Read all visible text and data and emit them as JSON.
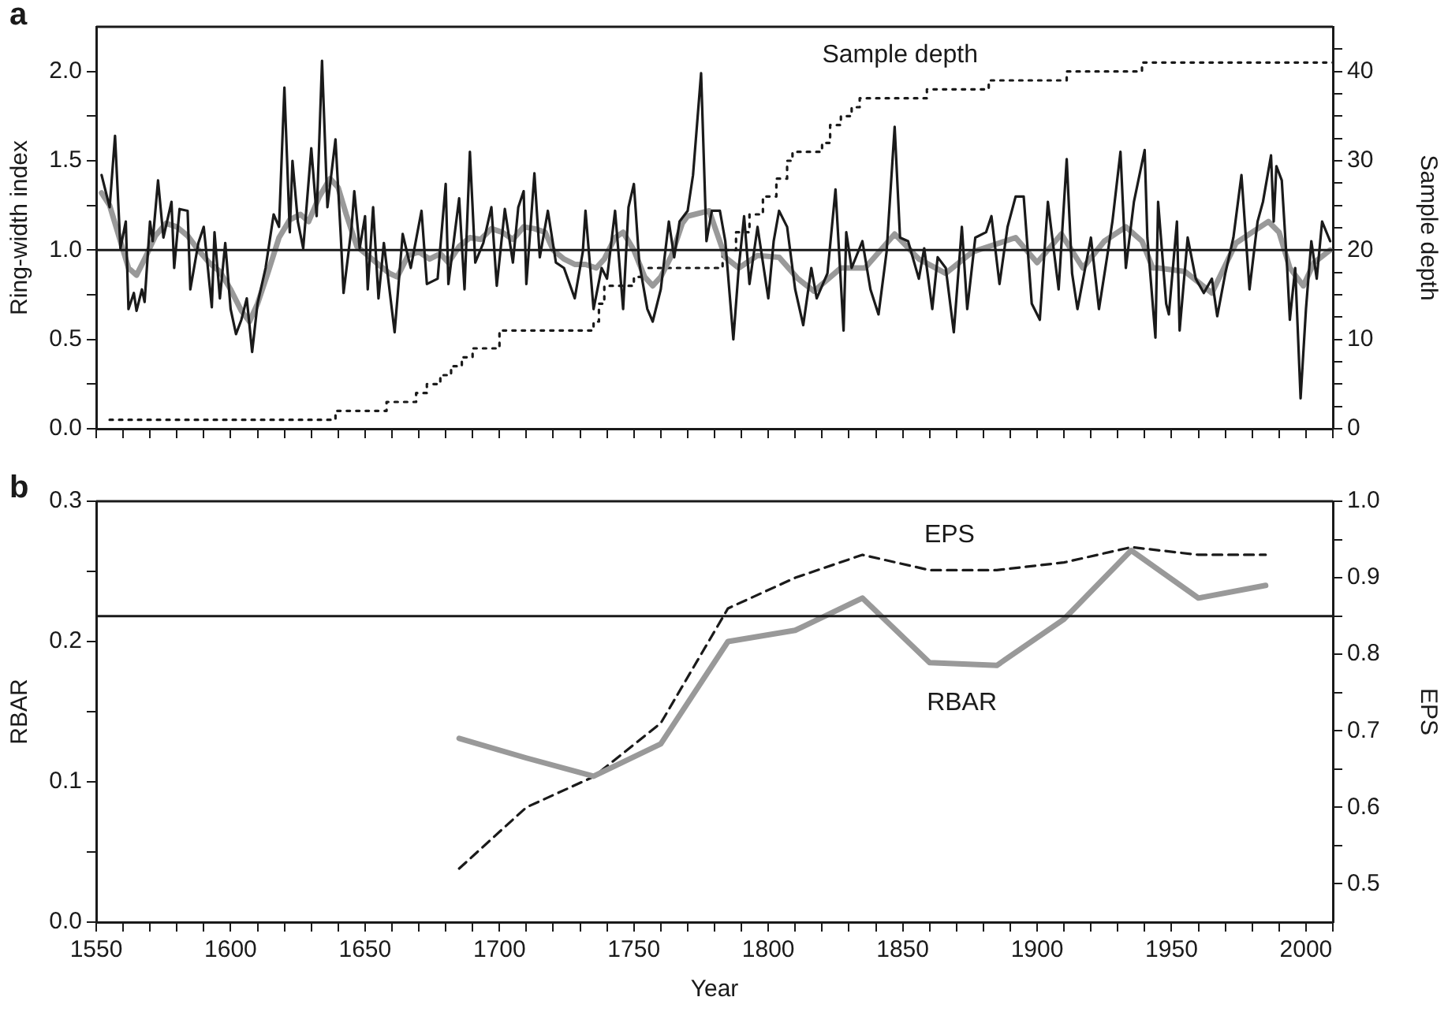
{
  "chart_data": [
    {
      "type": "line",
      "annotations": [
        "a"
      ],
      "ylabel": "Ring-width index",
      "y2label": "Sample depth",
      "xlim": [
        1550,
        2010
      ],
      "xticks": [
        {
          "value": 1550,
          "label": null
        },
        {
          "value": 1560,
          "label": null
        },
        {
          "value": 1570,
          "label": null
        },
        {
          "value": 1580,
          "label": null
        },
        {
          "value": 1590,
          "label": null
        },
        {
          "value": 1600,
          "label": null
        },
        {
          "value": 1610,
          "label": null
        },
        {
          "value": 1620,
          "label": null
        },
        {
          "value": 1630,
          "label": null
        },
        {
          "value": 1640,
          "label": null
        },
        {
          "value": 1650,
          "label": null
        },
        {
          "value": 1660,
          "label": null
        },
        {
          "value": 1670,
          "label": null
        },
        {
          "value": 1680,
          "label": null
        },
        {
          "value": 1690,
          "label": null
        },
        {
          "value": 1700,
          "label": null
        },
        {
          "value": 1710,
          "label": null
        },
        {
          "value": 1720,
          "label": null
        },
        {
          "value": 1730,
          "label": null
        },
        {
          "value": 1740,
          "label": null
        },
        {
          "value": 1750,
          "label": null
        },
        {
          "value": 1760,
          "label": null
        },
        {
          "value": 1770,
          "label": null
        },
        {
          "value": 1780,
          "label": null
        },
        {
          "value": 1790,
          "label": null
        },
        {
          "value": 1800,
          "label": null
        },
        {
          "value": 1810,
          "label": null
        },
        {
          "value": 1820,
          "label": null
        },
        {
          "value": 1830,
          "label": null
        },
        {
          "value": 1840,
          "label": null
        },
        {
          "value": 1850,
          "label": null
        },
        {
          "value": 1860,
          "label": null
        },
        {
          "value": 1870,
          "label": null
        },
        {
          "value": 1880,
          "label": null
        },
        {
          "value": 1890,
          "label": null
        },
        {
          "value": 1900,
          "label": null
        },
        {
          "value": 1910,
          "label": null
        },
        {
          "value": 1920,
          "label": null
        },
        {
          "value": 1930,
          "label": null
        },
        {
          "value": 1940,
          "label": null
        },
        {
          "value": 1950,
          "label": null
        },
        {
          "value": 1960,
          "label": null
        },
        {
          "value": 1970,
          "label": null
        },
        {
          "value": 1980,
          "label": null
        },
        {
          "value": 1990,
          "label": null
        },
        {
          "value": 2000,
          "label": null
        },
        {
          "value": 2010,
          "label": null
        }
      ],
      "ylim": [
        0,
        2.25
      ],
      "yticks": [
        {
          "value": 0,
          "label": "0.0"
        },
        {
          "value": 0.25,
          "label": null
        },
        {
          "value": 0.5,
          "label": "0.5"
        },
        {
          "value": 0.75,
          "label": null
        },
        {
          "value": 1,
          "label": "1.0"
        },
        {
          "value": 1.25,
          "label": null
        },
        {
          "value": 1.5,
          "label": "1.5"
        },
        {
          "value": 1.75,
          "label": null
        },
        {
          "value": 2,
          "label": "2.0"
        }
      ],
      "y2lim": [
        0,
        45
      ],
      "y2ticks": [
        0,
        {
          "value": 2.5,
          "label": null
        },
        {
          "value": 5,
          "label": null
        },
        {
          "value": 7.5,
          "label": null
        },
        10,
        {
          "value": 12.5,
          "label": null
        },
        {
          "value": 15,
          "label": null
        },
        {
          "value": 17.5,
          "label": null
        },
        20,
        {
          "value": 22.5,
          "label": null
        },
        {
          "value": 25,
          "label": null
        },
        {
          "value": 27.5,
          "label": null
        },
        30,
        {
          "value": 32.5,
          "label": null
        },
        {
          "value": 35,
          "label": null
        },
        {
          "value": 37.5,
          "label": null
        },
        40,
        {
          "value": 42.5,
          "label": null
        }
      ],
      "tick_labels": "y",
      "grid": false,
      "legend": false,
      "marker": "none",
      "ref_lines": [
        {
          "axis": "y",
          "value": 1.0,
          "color": "#1a1a1a"
        }
      ],
      "series": [
        {
          "color": "#1a1a1a",
          "x": [
            1552,
            1555,
            1557,
            1559,
            1561,
            1562,
            1564,
            1565,
            1567,
            1568,
            1570,
            1571,
            1573,
            1575,
            1578,
            1579,
            1581,
            1584,
            1585,
            1588,
            1590,
            1593,
            1594,
            1596,
            1598,
            1600,
            1602,
            1604,
            1606,
            1608,
            1610,
            1613,
            1616,
            1618,
            1620,
            1622,
            1623,
            1625,
            1627,
            1630,
            1632,
            1634,
            1636,
            1639,
            1641,
            1642,
            1645,
            1646,
            1648,
            1650,
            1651,
            1653,
            1655,
            1657,
            1661,
            1664,
            1667,
            1671,
            1673,
            1677,
            1680,
            1681,
            1685,
            1687,
            1689,
            1691,
            1694,
            1697,
            1699,
            1702,
            1705,
            1707,
            1709,
            1710,
            1713,
            1715,
            1718,
            1721,
            1724,
            1728,
            1731,
            1732,
            1735,
            1738,
            1740,
            1743,
            1746,
            1748,
            1750,
            1752,
            1755,
            1757,
            1760,
            1763,
            1765,
            1767,
            1770,
            1772,
            1775,
            1777,
            1779,
            1782,
            1784,
            1787,
            1789,
            1791,
            1793,
            1796,
            1800,
            1802,
            1804,
            1807,
            1810,
            1813,
            1816,
            1818,
            1822,
            1825,
            1828,
            1829,
            1831,
            1835,
            1838,
            1841,
            1844,
            1847,
            1849,
            1852,
            1856,
            1858,
            1861,
            1863,
            1866,
            1869,
            1872,
            1874,
            1877,
            1881,
            1883,
            1886,
            1889,
            1892,
            1895,
            1898,
            1901,
            1904,
            1908,
            1911,
            1913,
            1915,
            1920,
            1923,
            1926,
            1928,
            1931,
            1933,
            1936,
            1940,
            1941,
            1944,
            1945,
            1948,
            1949,
            1952,
            1953,
            1956,
            1959,
            1962,
            1965,
            1967,
            1970,
            1973,
            1976,
            1979,
            1982,
            1984,
            1987,
            1988,
            1989,
            1991,
            1993,
            1994,
            1996,
            1998,
            2000,
            2002,
            2004,
            2006,
            2009
          ],
          "values": [
            1.42,
            1.24,
            1.64,
            1.01,
            1.16,
            0.67,
            0.76,
            0.66,
            0.78,
            0.71,
            1.16,
            1.05,
            1.39,
            1.07,
            1.27,
            0.9,
            1.23,
            1.22,
            0.78,
            1.04,
            1.13,
            0.68,
            1.1,
            0.73,
            1.04,
            0.67,
            0.53,
            0.61,
            0.73,
            0.43,
            0.7,
            0.9,
            1.2,
            1.13,
            1.91,
            1.1,
            1.5,
            1.16,
            1.01,
            1.57,
            1.19,
            2.06,
            1.24,
            1.62,
            1.07,
            0.76,
            1.13,
            1.33,
            1.01,
            1.19,
            0.78,
            1.24,
            0.73,
            1.04,
            0.54,
            1.09,
            0.9,
            1.22,
            0.81,
            0.84,
            1.37,
            0.81,
            1.29,
            0.78,
            1.55,
            0.93,
            1.04,
            1.24,
            0.8,
            1.23,
            0.93,
            1.24,
            1.33,
            0.81,
            1.43,
            0.96,
            1.22,
            0.93,
            0.9,
            0.73,
            0.99,
            1.22,
            0.67,
            0.9,
            0.84,
            1.22,
            0.67,
            1.24,
            1.37,
            0.93,
            0.67,
            0.6,
            0.78,
            1.16,
            0.96,
            1.16,
            1.22,
            1.42,
            1.99,
            1.05,
            1.22,
            1.22,
            1.05,
            0.5,
            0.9,
            1.19,
            0.81,
            1.13,
            0.73,
            1.05,
            1.22,
            1.13,
            0.78,
            0.58,
            0.9,
            0.73,
            0.87,
            1.34,
            0.55,
            1.1,
            0.9,
            1.05,
            0.78,
            0.64,
            0.99,
            1.69,
            1.07,
            1.05,
            0.84,
            1.01,
            0.67,
            0.96,
            0.9,
            0.54,
            1.13,
            0.67,
            1.07,
            1.1,
            1.19,
            0.81,
            1.13,
            1.3,
            1.3,
            0.7,
            0.61,
            1.27,
            0.78,
            1.51,
            0.87,
            0.67,
            1.07,
            0.67,
            0.96,
            1.16,
            1.55,
            0.9,
            1.27,
            1.56,
            1.07,
            0.51,
            1.27,
            0.7,
            0.64,
            1.16,
            0.55,
            1.07,
            0.84,
            0.76,
            0.84,
            0.63,
            0.87,
            1.07,
            1.42,
            0.78,
            1.16,
            1.27,
            1.53,
            1.16,
            1.47,
            1.39,
            0.9,
            0.61,
            0.9,
            0.17,
            0.67,
            1.05,
            0.84,
            1.16,
            1.05
          ]
        },
        {
          "color": "#999999",
          "x": [
            1552,
            1555,
            1559,
            1562,
            1565,
            1568,
            1572,
            1576,
            1580,
            1584,
            1588,
            1592,
            1596,
            1600,
            1604,
            1607,
            1610,
            1614,
            1618,
            1622,
            1626,
            1629,
            1633,
            1637,
            1640,
            1643,
            1647,
            1651,
            1655,
            1659,
            1662,
            1666,
            1670,
            1674,
            1678,
            1681,
            1685,
            1689,
            1693,
            1697,
            1701,
            1705,
            1709,
            1713,
            1717,
            1720,
            1724,
            1728,
            1732,
            1736,
            1739,
            1743,
            1746,
            1750,
            1754,
            1757,
            1760,
            1764,
            1768,
            1770,
            1778,
            1784,
            1789,
            1796,
            1804,
            1811,
            1817,
            1827,
            1836,
            1847,
            1856,
            1866,
            1876,
            1884,
            1892,
            1900,
            1909,
            1917,
            1925,
            1933,
            1939,
            1943,
            1945,
            1955,
            1965,
            1974,
            1980,
            1986,
            1990,
            1994,
            1999,
            2003,
            2009
          ],
          "values": [
            1.32,
            1.25,
            1.05,
            0.9,
            0.86,
            0.95,
            1.08,
            1.15,
            1.13,
            1.08,
            1.0,
            0.93,
            0.88,
            0.78,
            0.66,
            0.6,
            0.7,
            0.88,
            1.07,
            1.17,
            1.2,
            1.16,
            1.3,
            1.4,
            1.35,
            1.2,
            1.02,
            0.97,
            0.92,
            0.87,
            0.85,
            0.97,
            0.99,
            0.95,
            0.98,
            0.93,
            1.02,
            1.07,
            1.06,
            1.12,
            1.1,
            1.06,
            1.13,
            1.12,
            1.1,
            1.0,
            0.95,
            0.92,
            0.92,
            0.9,
            0.95,
            1.07,
            1.1,
            1.0,
            0.85,
            0.8,
            0.85,
            0.97,
            1.15,
            1.19,
            1.22,
            0.96,
            0.9,
            0.97,
            0.96,
            0.84,
            0.77,
            0.9,
            0.9,
            1.09,
            0.95,
            0.87,
            0.99,
            1.03,
            1.07,
            0.93,
            1.09,
            0.9,
            1.05,
            1.13,
            1.05,
            0.9,
            0.9,
            0.88,
            0.76,
            1.04,
            1.1,
            1.16,
            1.1,
            0.9,
            0.8,
            0.93,
            1.0
          ]
        },
        {
          "name": "Sample depth",
          "type": "step",
          "axis": "y2",
          "line_style": "dotted",
          "color": "#1a1a1a",
          "x": [
            1555,
            1639,
            1658,
            1669,
            1673,
            1678,
            1682,
            1686,
            1690,
            1700,
            1735,
            1737,
            1739,
            1750,
            1753,
            1783,
            1788,
            1793,
            1798,
            1803,
            1807,
            1809,
            1820,
            1823,
            1827,
            1831,
            1834,
            1859,
            1882,
            1911,
            1939,
            2010
          ],
          "values": [
            1,
            2,
            3,
            4,
            5,
            6,
            7,
            8,
            9,
            11,
            12,
            14,
            16,
            17,
            18,
            20,
            22,
            24,
            26,
            28,
            30,
            31,
            32,
            34,
            35,
            36,
            37,
            38,
            39,
            40,
            41,
            41
          ]
        }
      ]
    },
    {
      "type": "line",
      "annotations": [
        "b"
      ],
      "xlabel": "Year",
      "ylabel": "RBAR",
      "y2label": "EPS",
      "xlim": [
        1550,
        2010
      ],
      "xticks": [
        1550,
        {
          "value": 1560,
          "label": null
        },
        {
          "value": 1570,
          "label": null
        },
        {
          "value": 1580,
          "label": null
        },
        {
          "value": 1590,
          "label": null
        },
        1600,
        {
          "value": 1610,
          "label": null
        },
        {
          "value": 1620,
          "label": null
        },
        {
          "value": 1630,
          "label": null
        },
        {
          "value": 1640,
          "label": null
        },
        1650,
        {
          "value": 1660,
          "label": null
        },
        {
          "value": 1670,
          "label": null
        },
        {
          "value": 1680,
          "label": null
        },
        {
          "value": 1690,
          "label": null
        },
        1700,
        {
          "value": 1710,
          "label": null
        },
        {
          "value": 1720,
          "label": null
        },
        {
          "value": 1730,
          "label": null
        },
        {
          "value": 1740,
          "label": null
        },
        1750,
        {
          "value": 1760,
          "label": null
        },
        {
          "value": 1770,
          "label": null
        },
        {
          "value": 1780,
          "label": null
        },
        {
          "value": 1790,
          "label": null
        },
        1800,
        {
          "value": 1810,
          "label": null
        },
        {
          "value": 1820,
          "label": null
        },
        {
          "value": 1830,
          "label": null
        },
        {
          "value": 1840,
          "label": null
        },
        1850,
        {
          "value": 1860,
          "label": null
        },
        {
          "value": 1870,
          "label": null
        },
        {
          "value": 1880,
          "label": null
        },
        {
          "value": 1890,
          "label": null
        },
        1900,
        {
          "value": 1910,
          "label": null
        },
        {
          "value": 1920,
          "label": null
        },
        {
          "value": 1930,
          "label": null
        },
        {
          "value": 1940,
          "label": null
        },
        1950,
        {
          "value": 1960,
          "label": null
        },
        {
          "value": 1970,
          "label": null
        },
        {
          "value": 1980,
          "label": null
        },
        {
          "value": 1990,
          "label": null
        },
        2000,
        {
          "value": 2010,
          "label": null
        }
      ],
      "ylim": [
        0,
        0.3
      ],
      "yticks": [
        {
          "value": 0,
          "label": "0.0"
        },
        {
          "value": 0.05,
          "label": null
        },
        {
          "value": 0.1,
          "label": "0.1"
        },
        {
          "value": 0.15,
          "label": null
        },
        {
          "value": 0.2,
          "label": "0.2"
        },
        {
          "value": 0.25,
          "label": null
        },
        {
          "value": 0.3,
          "label": "0.3"
        }
      ],
      "y2lim": [
        0.45,
        1.0
      ],
      "y2ticks": [
        0.5,
        {
          "value": 0.55,
          "label": null
        },
        0.6,
        {
          "value": 0.65,
          "label": null
        },
        0.7,
        {
          "value": 0.75,
          "label": null
        },
        0.8,
        {
          "value": 0.85,
          "label": null
        },
        0.9,
        {
          "value": 0.95,
          "label": null
        },
        {
          "value": 1,
          "label": "1.0"
        }
      ],
      "grid": false,
      "legend": false,
      "marker": "none",
      "ref_lines": [
        {
          "axis": "y2",
          "value": 0.85,
          "color": "#1a1a1a"
        }
      ],
      "series": [
        {
          "name": "RBAR",
          "color": "#999999",
          "x": [
            1685,
            1710,
            1735,
            1760,
            1785,
            1810,
            1835,
            1860,
            1885,
            1910,
            1935,
            1960,
            1985
          ],
          "values": [
            0.131,
            0.117,
            0.104,
            0.127,
            0.2,
            0.208,
            0.231,
            0.185,
            0.183,
            0.216,
            0.265,
            0.231,
            0.24
          ]
        },
        {
          "name": "EPS",
          "axis": "y2",
          "line_style": "dashed",
          "color": "#1a1a1a",
          "x": [
            1685,
            1710,
            1735,
            1760,
            1785,
            1810,
            1835,
            1860,
            1885,
            1910,
            1935,
            1960,
            1985
          ],
          "values": [
            0.52,
            0.6,
            0.64,
            0.71,
            0.86,
            0.9,
            0.93,
            0.91,
            0.91,
            0.92,
            0.94,
            0.93,
            0.93
          ]
        }
      ]
    }
  ]
}
